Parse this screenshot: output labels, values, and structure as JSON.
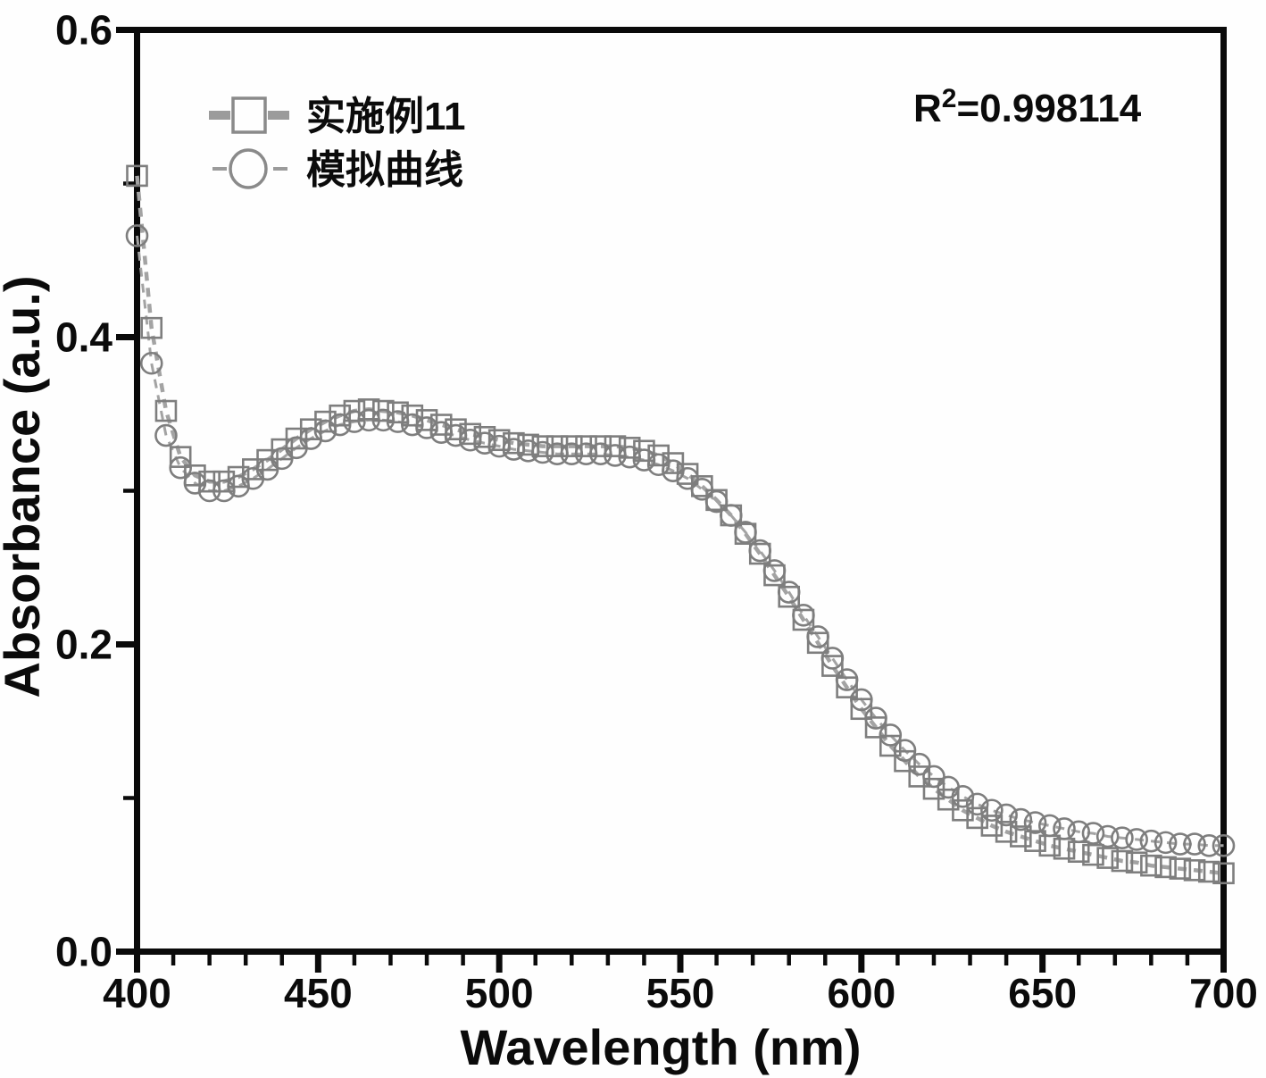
{
  "figure": {
    "background": "#fefefe",
    "axis_color": "#0a0a0a",
    "series_line_color": "#a3a3a3",
    "series_marker_color": "#7e7e7e",
    "legend_dash_color": "#9b9b9b",
    "annotation": {
      "base": "R",
      "sup": "2",
      "rest": "=0.998114"
    }
  },
  "chart_data": {
    "type": "line",
    "title": "",
    "xlabel": "Wavelength (nm)",
    "ylabel": "Absorbance (a.u.)",
    "xlim": [
      400,
      700
    ],
    "ylim": [
      0,
      0.6
    ],
    "grid": false,
    "legend_position": "upper-left",
    "annotation": "R²=0.998114",
    "x_ticks": [
      {
        "value": 400,
        "label": "400"
      },
      {
        "value": 450,
        "label": "450"
      },
      {
        "value": 500,
        "label": "500"
      },
      {
        "value": 550,
        "label": "550"
      },
      {
        "value": 600,
        "label": "600"
      },
      {
        "value": 650,
        "label": "650"
      },
      {
        "value": 700,
        "label": "700"
      }
    ],
    "x_minor_step": 10,
    "y_ticks": [
      {
        "value": 0.0,
        "label": "0.0"
      },
      {
        "value": 0.2,
        "label": "0.2"
      },
      {
        "value": 0.4,
        "label": "0.4"
      },
      {
        "value": 0.6,
        "label": "0.6"
      }
    ],
    "y_minor_ticks": [
      0.1,
      0.3,
      0.5
    ],
    "x": [
      400,
      404,
      408,
      412,
      416,
      420,
      424,
      428,
      432,
      436,
      440,
      444,
      448,
      452,
      456,
      460,
      464,
      468,
      472,
      476,
      480,
      484,
      488,
      492,
      496,
      500,
      504,
      508,
      512,
      516,
      520,
      524,
      528,
      532,
      536,
      540,
      544,
      548,
      552,
      556,
      560,
      564,
      568,
      572,
      576,
      580,
      584,
      588,
      592,
      596,
      600,
      604,
      608,
      612,
      616,
      620,
      624,
      628,
      632,
      636,
      640,
      644,
      648,
      652,
      656,
      660,
      664,
      668,
      672,
      676,
      680,
      684,
      688,
      692,
      696,
      700
    ],
    "series": [
      {
        "name": "实施例11",
        "marker": "square",
        "values": [
          0.505,
          0.406,
          0.352,
          0.322,
          0.31,
          0.306,
          0.306,
          0.309,
          0.314,
          0.32,
          0.327,
          0.334,
          0.34,
          0.345,
          0.349,
          0.352,
          0.353,
          0.352,
          0.351,
          0.349,
          0.346,
          0.343,
          0.34,
          0.337,
          0.335,
          0.333,
          0.331,
          0.33,
          0.329,
          0.329,
          0.329,
          0.329,
          0.329,
          0.329,
          0.328,
          0.326,
          0.323,
          0.318,
          0.311,
          0.303,
          0.294,
          0.284,
          0.272,
          0.259,
          0.245,
          0.231,
          0.216,
          0.201,
          0.186,
          0.172,
          0.158,
          0.146,
          0.134,
          0.124,
          0.114,
          0.106,
          0.099,
          0.092,
          0.087,
          0.082,
          0.078,
          0.075,
          0.072,
          0.069,
          0.067,
          0.065,
          0.063,
          0.061,
          0.059,
          0.058,
          0.056,
          0.055,
          0.054,
          0.053,
          0.052,
          0.051
        ]
      },
      {
        "name": "模拟曲线",
        "marker": "circle",
        "values": [
          0.466,
          0.383,
          0.336,
          0.315,
          0.305,
          0.3,
          0.3,
          0.303,
          0.308,
          0.314,
          0.321,
          0.328,
          0.334,
          0.339,
          0.343,
          0.345,
          0.346,
          0.346,
          0.345,
          0.343,
          0.341,
          0.338,
          0.336,
          0.333,
          0.331,
          0.329,
          0.327,
          0.326,
          0.325,
          0.324,
          0.324,
          0.324,
          0.324,
          0.323,
          0.322,
          0.32,
          0.317,
          0.313,
          0.308,
          0.301,
          0.293,
          0.284,
          0.273,
          0.261,
          0.248,
          0.234,
          0.219,
          0.205,
          0.191,
          0.177,
          0.164,
          0.152,
          0.141,
          0.131,
          0.122,
          0.114,
          0.107,
          0.101,
          0.096,
          0.092,
          0.089,
          0.086,
          0.084,
          0.082,
          0.08,
          0.078,
          0.077,
          0.075,
          0.074,
          0.073,
          0.072,
          0.071,
          0.07,
          0.07,
          0.069,
          0.069
        ]
      }
    ]
  }
}
